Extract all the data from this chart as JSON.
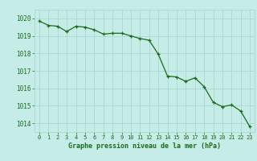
{
  "x": [
    0,
    1,
    2,
    3,
    4,
    5,
    6,
    7,
    8,
    9,
    10,
    11,
    12,
    13,
    14,
    15,
    16,
    17,
    18,
    19,
    20,
    21,
    22,
    23
  ],
  "y": [
    1019.85,
    1019.6,
    1019.55,
    1019.25,
    1019.55,
    1019.5,
    1019.35,
    1019.1,
    1019.15,
    1019.15,
    1019.0,
    1018.85,
    1018.75,
    1017.95,
    1016.7,
    1016.65,
    1016.4,
    1016.6,
    1016.1,
    1015.2,
    1014.95,
    1015.05,
    1014.7,
    1013.8
  ],
  "xlabel": "Graphe pression niveau de la mer (hPa)",
  "ylim": [
    1013.5,
    1020.5
  ],
  "yticks": [
    1014,
    1015,
    1016,
    1017,
    1018,
    1019,
    1020
  ],
  "xticks": [
    0,
    1,
    2,
    3,
    4,
    5,
    6,
    7,
    8,
    9,
    10,
    11,
    12,
    13,
    14,
    15,
    16,
    17,
    18,
    19,
    20,
    21,
    22,
    23
  ],
  "line_color": "#1a6b1a",
  "marker_color": "#1a6b1a",
  "bg_color": "#c5ece6",
  "grid_color": "#a8d8d0",
  "axis_label_color": "#1a6b1a",
  "tick_label_color": "#1a6b1a"
}
